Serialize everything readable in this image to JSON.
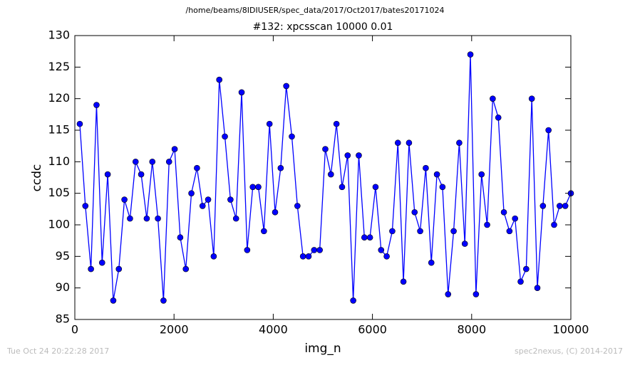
{
  "chart_data": {
    "type": "line",
    "suptitle": "/home/beams/8IDIUSER/spec_data/2017/Oct2017/bates20171024",
    "title": "#132: xpcsscan 10000 0.01",
    "xlabel": "img_n",
    "ylabel": "ccdc",
    "footer_left": "Tue Oct 24 20:22:28 2017",
    "footer_right": "spec2nexus, (C) 2014-2017",
    "x": [
      100,
      212.5,
      325,
      437.5,
      550,
      662.5,
      775,
      887.5,
      1000,
      1112.5,
      1225,
      1337.5,
      1450,
      1562.5,
      1675,
      1787.5,
      1900,
      2012.5,
      2125,
      2237.5,
      2350,
      2462.5,
      2575,
      2687.5,
      2800,
      2912.5,
      3025,
      3137.5,
      3250,
      3362.5,
      3475,
      3587.5,
      3700,
      3812.5,
      3925,
      4037.5,
      4150,
      4262.5,
      4375,
      4487.5,
      4600,
      4712.5,
      4825,
      4937.5,
      5050,
      5162.5,
      5275,
      5387.5,
      5500,
      5612.5,
      5725,
      5837.5,
      5950,
      6062.5,
      6175,
      6287.5,
      6400,
      6512.5,
      6625,
      6737.5,
      6850,
      6962.5,
      7075,
      7187.5,
      7300,
      7412.5,
      7525,
      7637.5,
      7750,
      7862.5,
      7975,
      8087.5,
      8200,
      8312.5,
      8425,
      8537.5,
      8650,
      8762.5,
      8875,
      8987.5,
      9100,
      9212.5,
      9325,
      9437.5,
      9550,
      9662.5,
      9775,
      9887.5,
      10000
    ],
    "series": [
      {
        "color": "#0000ff",
        "values": [
          116,
          103,
          93,
          119,
          94,
          108,
          88,
          93,
          104,
          101,
          110,
          108,
          101,
          110,
          101,
          88,
          110,
          112,
          98,
          93,
          105,
          109,
          103,
          104,
          95,
          123,
          114,
          104,
          101,
          121,
          96,
          106,
          106,
          99,
          116,
          102,
          109,
          122,
          114,
          103,
          95,
          95,
          96,
          96,
          112,
          108,
          116,
          106,
          111,
          88,
          111,
          98,
          98,
          106,
          96,
          95,
          99,
          113,
          91,
          113,
          102,
          99,
          109,
          94,
          108,
          106,
          89,
          99,
          113,
          97,
          127,
          89,
          108,
          100,
          120,
          117,
          102,
          99,
          101,
          91,
          93,
          120,
          90,
          103,
          115,
          100,
          103,
          103,
          105
        ]
      }
    ],
    "xlim": [
      0,
      10000
    ],
    "xticks": [
      0,
      2000,
      4000,
      6000,
      8000,
      10000
    ],
    "ylim": [
      85,
      130
    ],
    "yticks": [
      85,
      90,
      95,
      100,
      105,
      110,
      115,
      120,
      125,
      130
    ]
  }
}
